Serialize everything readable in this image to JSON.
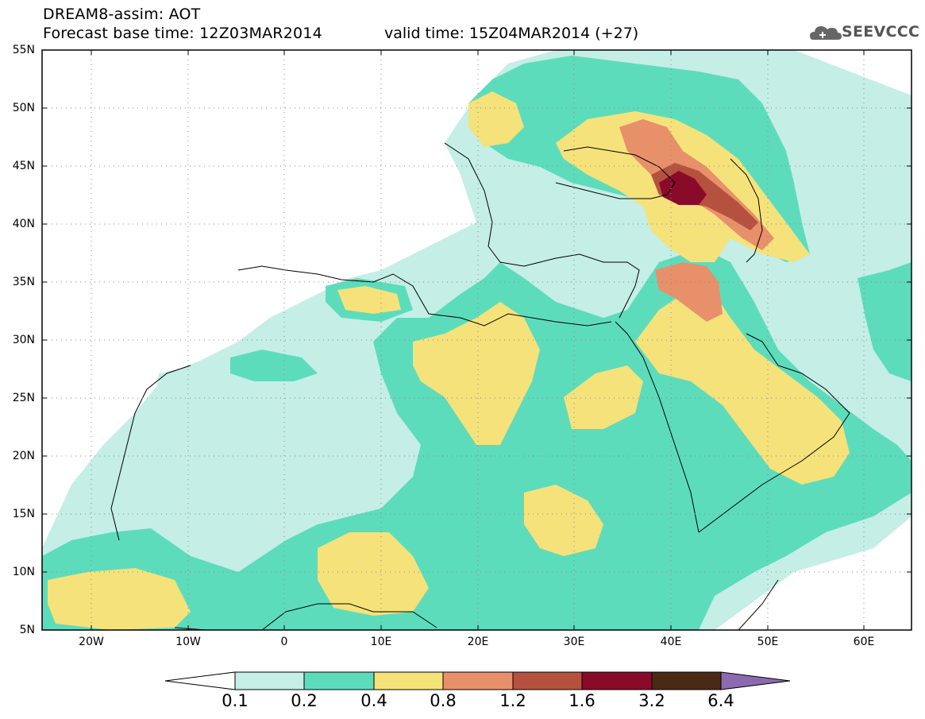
{
  "header": {
    "title_line1": "DREAM8-assim: AOT",
    "title_line2": "Forecast base time: 12Z03MAR2014",
    "valid_time": "valid time: 15Z04MAR2014 (+27)",
    "logo_text": "SEEVCCC"
  },
  "map": {
    "lat_labels": [
      "55N",
      "50N",
      "45N",
      "40N",
      "35N",
      "30N",
      "25N",
      "20N",
      "15N",
      "10N",
      "5N"
    ],
    "lon_labels": [
      "20W",
      "10W",
      "0",
      "10E",
      "20E",
      "30E",
      "40E",
      "50E",
      "60E"
    ],
    "extent": {
      "lon_min": -25,
      "lon_max": 65,
      "lat_min": 5,
      "lat_max": 55
    }
  },
  "colorbar": {
    "labels": [
      "0.1",
      "0.2",
      "0.4",
      "0.8",
      "1.2",
      "1.6",
      "3.2",
      "6.4"
    ],
    "colors": [
      "#ffffff",
      "#c4eee6",
      "#5ddcbc",
      "#f5e27a",
      "#e8906a",
      "#b5523f",
      "#8a0a2a",
      "#4a2a14",
      "#8c6ab0"
    ]
  },
  "palette": {
    "c1": "#c4eee6",
    "c2": "#5ddcbc",
    "c3": "#f5e27a",
    "c4": "#e8906a",
    "c5": "#b5523f",
    "c6": "#8a0a2a"
  }
}
